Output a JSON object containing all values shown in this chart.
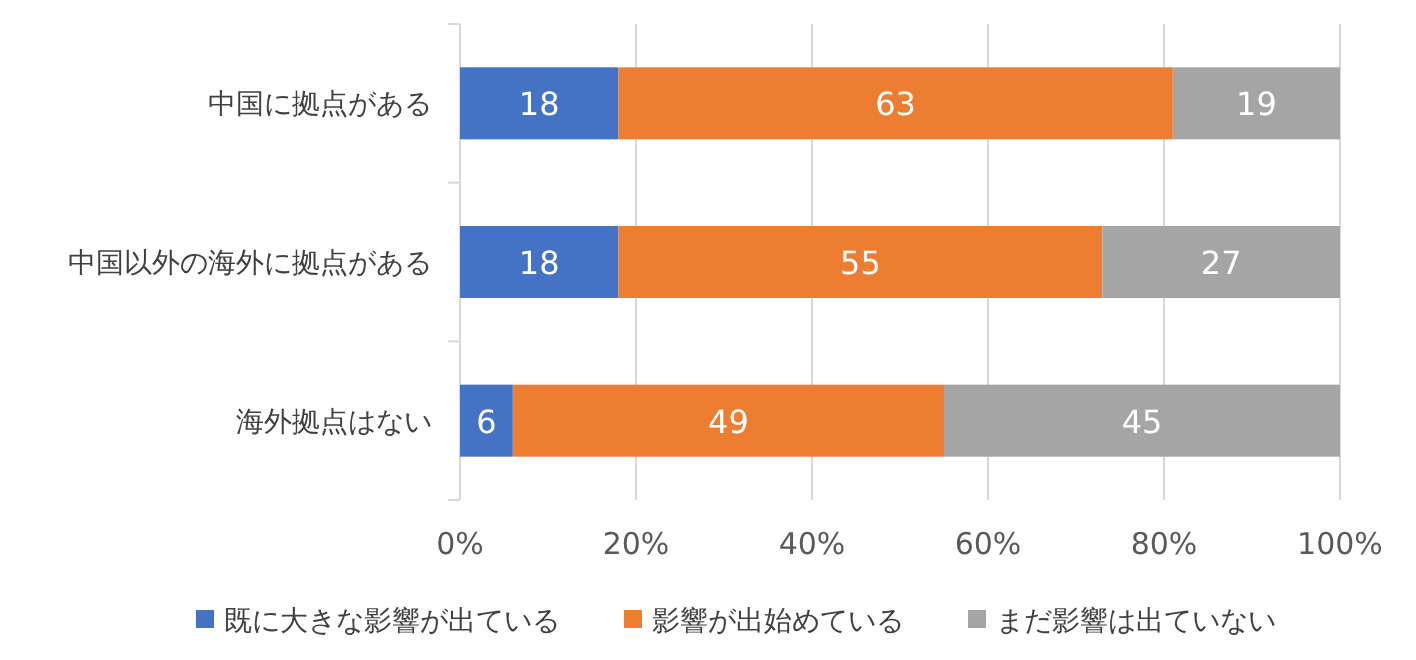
{
  "chart_data": {
    "type": "bar",
    "orientation": "horizontal",
    "stacked": true,
    "categories": [
      "中国に拠点がある",
      "中国以外の海外に拠点がある",
      "海外拠点はない"
    ],
    "series": [
      {
        "name": "既に大きな影響が出ている",
        "color": "#4472c4",
        "values": [
          18,
          18,
          6
        ]
      },
      {
        "name": "影響が出始めている",
        "color": "#ed7d31",
        "values": [
          63,
          55,
          49
        ]
      },
      {
        "name": "まだ影響は出ていない",
        "color": "#a5a5a5",
        "values": [
          19,
          27,
          45
        ]
      }
    ],
    "xlim": [
      0,
      100
    ],
    "xticks": [
      {
        "value": 0,
        "label": "0%"
      },
      {
        "value": 20,
        "label": "20%"
      },
      {
        "value": 40,
        "label": "40%"
      },
      {
        "value": 60,
        "label": "60%"
      },
      {
        "value": 80,
        "label": "80%"
      },
      {
        "value": 100,
        "label": "100%"
      }
    ],
    "grid": "x",
    "legend": "bottom",
    "data_labels": true
  }
}
